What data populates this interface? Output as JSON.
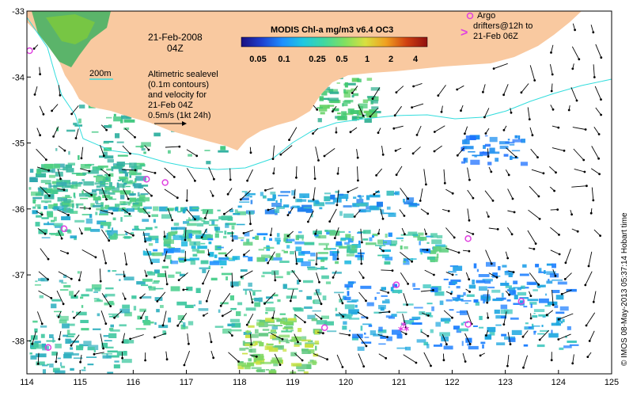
{
  "colors": {
    "land": "#f9c9a0",
    "isobath": "#33dddd",
    "arrow": "#000000",
    "argo": "#e040e0"
  },
  "map": {
    "lon_range": [
      114,
      125
    ],
    "lat_range": [
      -38.5,
      -33
    ],
    "x_ticks": [
      "114",
      "115",
      "116",
      "117",
      "118",
      "119",
      "120",
      "121",
      "122",
      "123",
      "124",
      "125"
    ],
    "y_ticks": [
      "-33",
      "-34",
      "-35",
      "-36",
      "-37",
      "-38"
    ]
  },
  "title": {
    "date": "21-Feb-2008",
    "time": "04Z"
  },
  "colorbar": {
    "title": "MODIS Chl-a mg/m3 v6.4 OC3",
    "labels": [
      "0.05",
      "0.1",
      "0.25",
      "0.5",
      "1",
      "2",
      "4"
    ],
    "stops": [
      "#1a0f80",
      "#1e40d0",
      "#1e90ff",
      "#20c8e0",
      "#40d8a0",
      "#80e060",
      "#d8e040",
      "#f0a020",
      "#d04010",
      "#901010"
    ]
  },
  "annotations": {
    "isobath_label": "200m",
    "sealevel_line1": "Altimetric sealevel",
    "sealevel_line2": "(0.1m contours)",
    "sealevel_line3": "and velocity for",
    "sealevel_line4": "21-Feb 04Z",
    "velocity_scale": "0.5m/s (1kt 24h)"
  },
  "argo_legend": {
    "line1": "Argo",
    "line2": "drifters@12h to",
    "line3": "21-Feb 06Z",
    "marker": ">"
  },
  "credit": "© IMOS 08-May-2013 05:37:14 Hobart time",
  "argo_floats": [
    {
      "lon": 114.05,
      "lat": -33.6
    },
    {
      "lon": 116.25,
      "lat": -35.55
    },
    {
      "lon": 116.6,
      "lat": -35.6
    },
    {
      "lon": 114.7,
      "lat": -36.3
    },
    {
      "lon": 122.3,
      "lat": -36.45
    },
    {
      "lon": 120.95,
      "lat": -37.15
    },
    {
      "lon": 123.3,
      "lat": -37.4
    },
    {
      "lon": 119.6,
      "lat": -37.8
    },
    {
      "lon": 122.3,
      "lat": -37.75
    },
    {
      "lon": 114.4,
      "lat": -38.1
    }
  ]
}
